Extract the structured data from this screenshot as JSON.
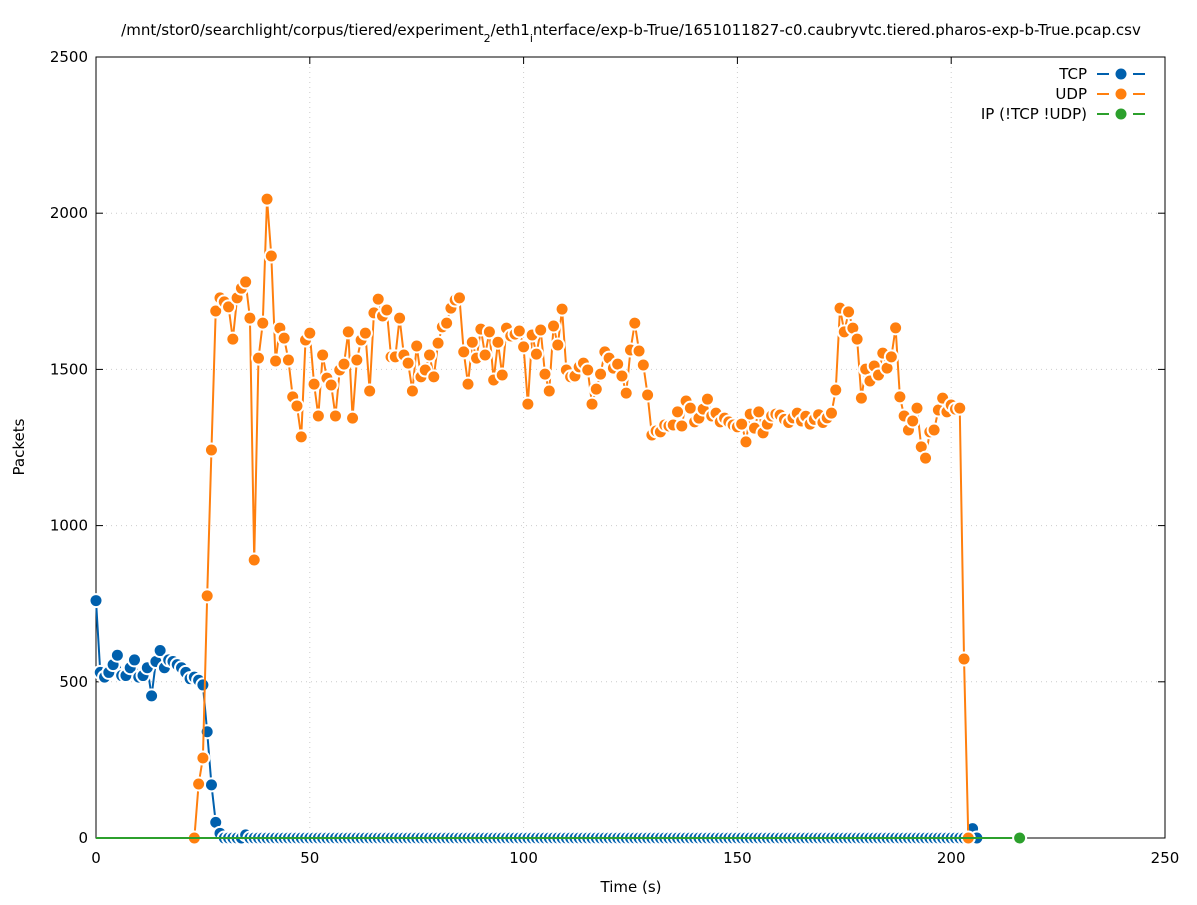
{
  "chart_data": {
    "type": "line",
    "title_parts": [
      "/mnt/stor0/searchlight/corpus/tiered/experiment",
      "2",
      "/eth1",
      "i",
      "nterface/exp-b-True/1651011827-c0.caubryvtc.tiered.pharos-exp-b-True.pcap.csv"
    ],
    "xlabel": "Time (s)",
    "ylabel": "Packets",
    "xlim": [
      0,
      250
    ],
    "ylim": [
      0,
      2500
    ],
    "xticks": [
      0,
      50,
      100,
      150,
      200,
      250
    ],
    "yticks": [
      0,
      500,
      1000,
      1500,
      2000,
      2500
    ],
    "grid": true,
    "legend_placement": "top-right",
    "series": [
      {
        "name": "TCP",
        "color": "#0060ad",
        "start": 0,
        "values": [
          760,
          530,
          515,
          530,
          555,
          585,
          520,
          520,
          545,
          570,
          515,
          520,
          545,
          455,
          565,
          600,
          545,
          570,
          565,
          555,
          545,
          530,
          510,
          515,
          505,
          490,
          340,
          170,
          50,
          15,
          0,
          0,
          0,
          0,
          0,
          10,
          0,
          0,
          0,
          0,
          0,
          0,
          0,
          0,
          0,
          0,
          0,
          0,
          0,
          0,
          0,
          0,
          0,
          0,
          0,
          0,
          0,
          0,
          0,
          0,
          0,
          0,
          0,
          0,
          0,
          0,
          0,
          0,
          0,
          0,
          0,
          0,
          0,
          0,
          0,
          0,
          0,
          0,
          0,
          0,
          0,
          0,
          0,
          0,
          0,
          0,
          0,
          0,
          0,
          0,
          0,
          0,
          0,
          0,
          0,
          0,
          0,
          0,
          0,
          0,
          0,
          0,
          0,
          0,
          0,
          0,
          0,
          0,
          0,
          0,
          0,
          0,
          0,
          0,
          0,
          0,
          0,
          0,
          0,
          0,
          0,
          0,
          0,
          0,
          0,
          0,
          0,
          0,
          0,
          0,
          0,
          0,
          0,
          0,
          0,
          0,
          0,
          0,
          0,
          0,
          0,
          0,
          0,
          0,
          0,
          0,
          0,
          0,
          0,
          0,
          0,
          0,
          0,
          0,
          0,
          0,
          0,
          0,
          0,
          0,
          0,
          0,
          0,
          0,
          0,
          0,
          0,
          0,
          0,
          0,
          0,
          0,
          0,
          0,
          0,
          0,
          0,
          0,
          0,
          0,
          0,
          0,
          0,
          0,
          0,
          0,
          0,
          0,
          0,
          0,
          0,
          0,
          0,
          0,
          0,
          0,
          0,
          0,
          0,
          0,
          0,
          0,
          0,
          0,
          0,
          30,
          0
        ]
      },
      {
        "name": "UDP",
        "color": "#ff7f0e",
        "start": 23,
        "values": [
          0,
          173,
          256,
          775,
          1242,
          1687,
          1729,
          1716,
          1700,
          1597,
          1729,
          1760,
          1780,
          1664,
          890,
          1536,
          1648,
          2045,
          1863,
          1527,
          1632,
          1600,
          1530,
          1412,
          1383,
          1284,
          1594,
          1616,
          1453,
          1351,
          1546,
          1472,
          1450,
          1351,
          1498,
          1517,
          1620,
          1344,
          1530,
          1594,
          1616,
          1431,
          1681,
          1725,
          1671,
          1690,
          1540,
          1540,
          1664,
          1546,
          1520,
          1431,
          1575,
          1476,
          1498,
          1546,
          1476,
          1584,
          1636,
          1648,
          1696,
          1722,
          1729,
          1556,
          1453,
          1587,
          1536,
          1629,
          1546,
          1620,
          1466,
          1587,
          1482,
          1632,
          1607,
          1613,
          1623,
          1572,
          1389,
          1610,
          1549,
          1626,
          1485,
          1431,
          1639,
          1578,
          1693,
          1498,
          1476,
          1479,
          1508,
          1520,
          1498,
          1389,
          1437,
          1485,
          1556,
          1536,
          1504,
          1517,
          1479,
          1424,
          1562,
          1648,
          1559,
          1514,
          1418,
          1290,
          1303,
          1300,
          1322,
          1319,
          1322,
          1364,
          1319,
          1399,
          1376,
          1332,
          1344,
          1373,
          1405,
          1351,
          1360,
          1332,
          1344,
          1332,
          1322,
          1316,
          1325,
          1268,
          1357,
          1312,
          1364,
          1297,
          1325,
          1351,
          1357,
          1354,
          1340,
          1330,
          1345,
          1360,
          1335,
          1350,
          1325,
          1340,
          1355,
          1330,
          1345,
          1360,
          1434,
          1696,
          1620,
          1684,
          1632,
          1597,
          1408,
          1501,
          1463,
          1511,
          1482,
          1552,
          1504,
          1540,
          1633,
          1412,
          1351,
          1306,
          1335,
          1376,
          1252,
          1216,
          1300,
          1306,
          1370,
          1408,
          1364,
          1386,
          1373,
          1376,
          573,
          0
        ]
      },
      {
        "name": "IP (!TCP  !UDP)",
        "color": "#2ca02c",
        "start": 0,
        "constant": 0,
        "end": 216
      }
    ]
  }
}
